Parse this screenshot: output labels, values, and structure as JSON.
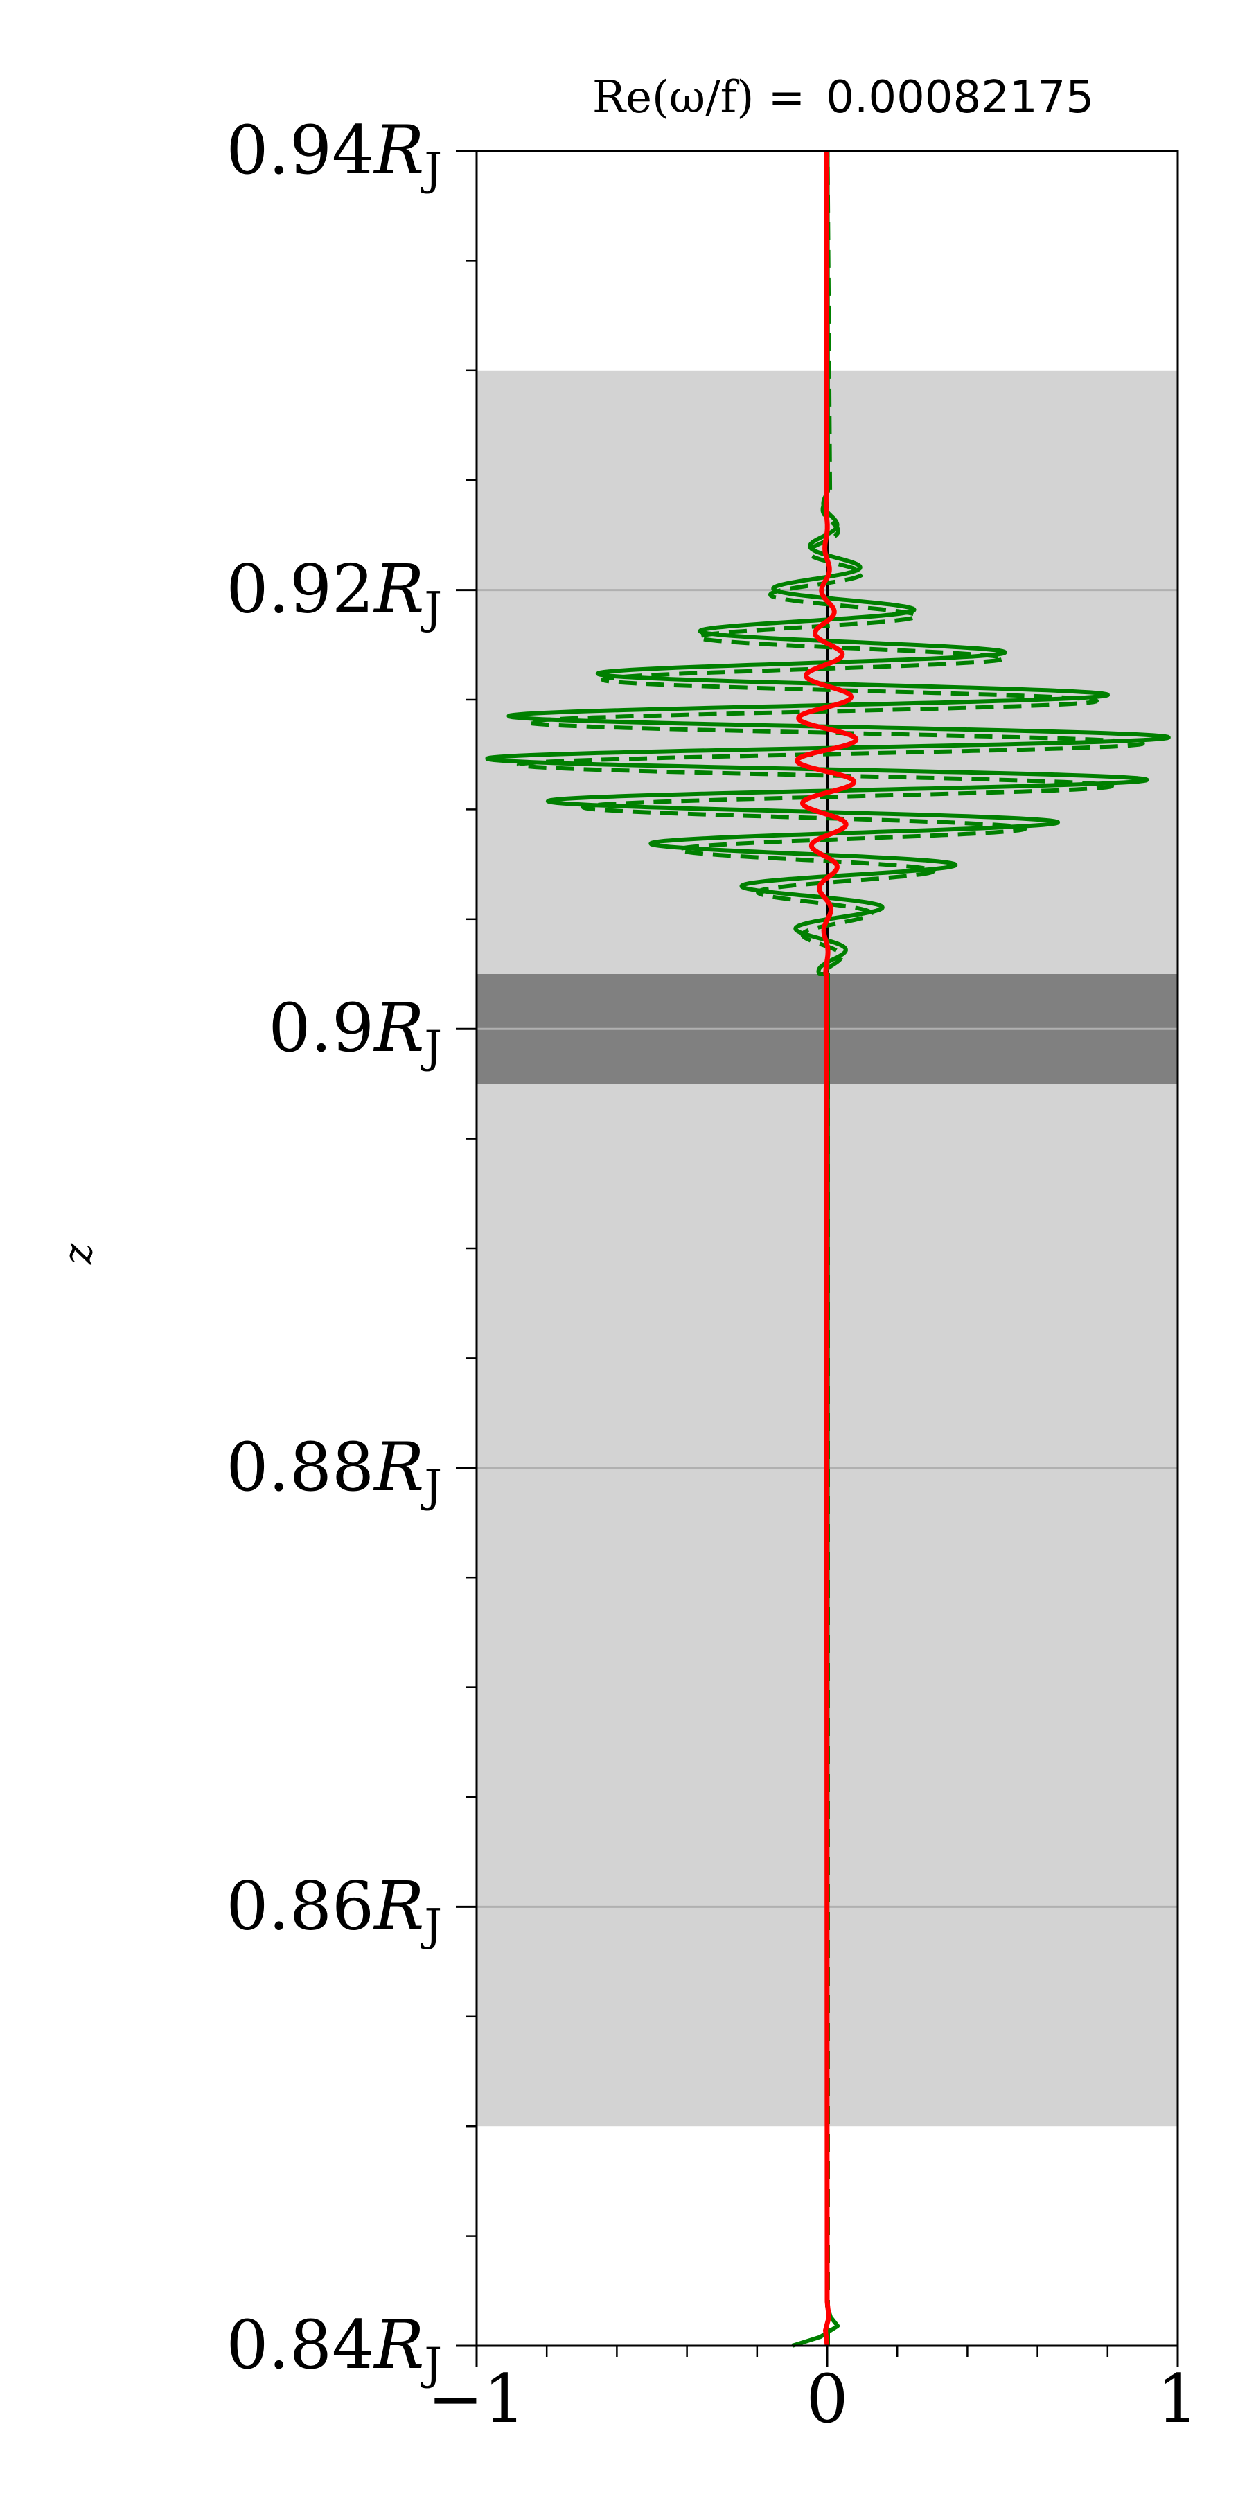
{
  "chart_data": {
    "type": "line",
    "title": "Re(ω/f) = 0.00082175",
    "title_parts": {
      "lhs": "Re(ω/f) =",
      "value": "0.00082175"
    },
    "ylabel": "z",
    "xlim": [
      -1,
      1
    ],
    "ylim": [
      0.84,
      0.94
    ],
    "x_ticks": [
      {
        "value": -1,
        "label": "−1"
      },
      {
        "value": 0,
        "label": "0"
      },
      {
        "value": 1,
        "label": "1"
      }
    ],
    "x_minor_ticks": [
      -0.8,
      -0.6,
      -0.4,
      -0.2,
      0.2,
      0.4,
      0.6,
      0.8
    ],
    "y_ticks": [
      {
        "value": 0.84,
        "num": "0.84",
        "unit": "R",
        "sub": "J"
      },
      {
        "value": 0.86,
        "num": "0.86",
        "unit": "R",
        "sub": "J"
      },
      {
        "value": 0.88,
        "num": "0.88",
        "unit": "R",
        "sub": "J"
      },
      {
        "value": 0.9,
        "num": "0.9",
        "unit": "R",
        "sub": "J"
      },
      {
        "value": 0.92,
        "num": "0.92",
        "unit": "R",
        "sub": "J"
      },
      {
        "value": 0.94,
        "num": "0.94",
        "unit": "R",
        "sub": "J"
      }
    ],
    "y_minor_ticks": [
      0.845,
      0.85,
      0.855,
      0.865,
      0.87,
      0.875,
      0.885,
      0.89,
      0.895,
      0.905,
      0.91,
      0.915,
      0.925,
      0.93,
      0.935
    ],
    "grid": {
      "horizontal_lines_at": [
        0.86,
        0.88,
        0.9,
        0.92
      ],
      "color": "#b0b0b0"
    },
    "bands": [
      {
        "name": "light-band",
        "y_range": [
          0.85,
          0.93
        ],
        "color": "#d3d3d3"
      },
      {
        "name": "dark-band",
        "y_range": [
          0.8975,
          0.9025
        ],
        "color": "#808080"
      }
    ],
    "envelope": {
      "center": 0.9128,
      "width": 0.0038,
      "z_range": [
        0.9025,
        0.9245
      ],
      "wavelength": 0.00195
    },
    "series": [
      {
        "style": "solid",
        "color": "#008000",
        "amplitude": 0.98,
        "phase": 0.0,
        "baseline": 0.002,
        "bottom_tail": [
          [
            -0.1,
            0.84
          ],
          [
            -0.02,
            0.8404
          ],
          [
            0.03,
            0.8409
          ],
          [
            0.01,
            0.8413
          ],
          [
            0.0,
            0.8418
          ]
        ]
      },
      {
        "style": "dashed",
        "color": "#008000",
        "amplitude": 0.9,
        "phase": 0.9,
        "baseline": 0.002,
        "bottom_tail": []
      },
      {
        "style": "solid",
        "color": "#ff0000",
        "amplitude": 0.085,
        "phase": 0.3,
        "baseline": -0.002,
        "bottom_tail": [
          [
            0.0,
            0.84
          ],
          [
            -0.005,
            0.8407
          ],
          [
            0.005,
            0.8413
          ],
          [
            0.0,
            0.842
          ]
        ]
      }
    ],
    "colors": {
      "green": "#008000",
      "red": "#ff0000",
      "axis": "#000000"
    }
  }
}
